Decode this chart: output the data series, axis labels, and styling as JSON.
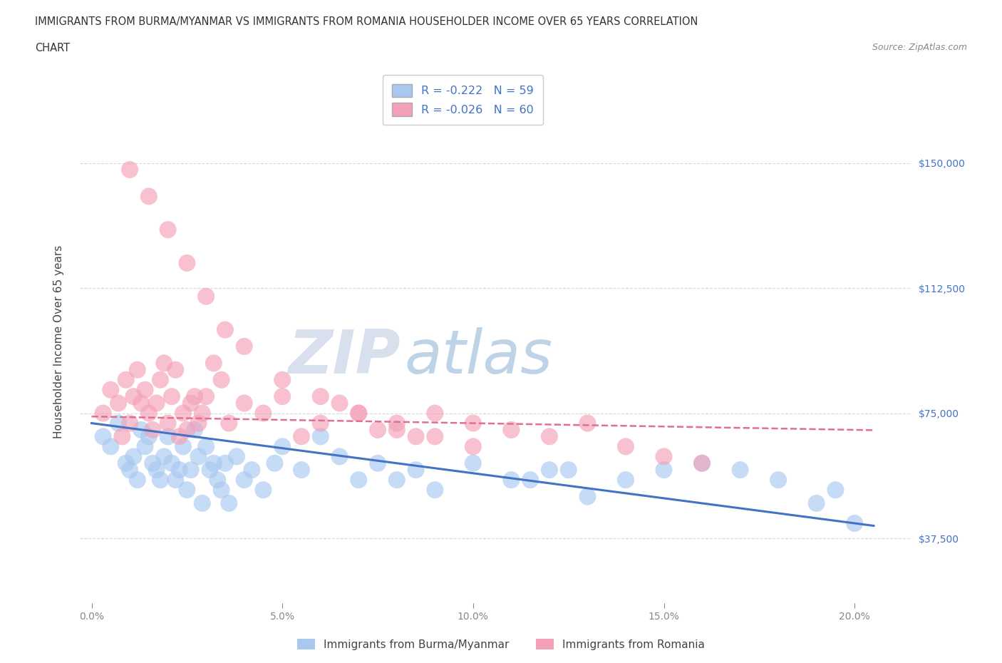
{
  "title_line1": "IMMIGRANTS FROM BURMA/MYANMAR VS IMMIGRANTS FROM ROMANIA HOUSEHOLDER INCOME OVER 65 YEARS CORRELATION",
  "title_line2": "CHART",
  "source_text": "Source: ZipAtlas.com",
  "ylabel": "Householder Income Over 65 years",
  "xlabel_ticks": [
    "0.0%",
    "5.0%",
    "10.0%",
    "15.0%",
    "20.0%"
  ],
  "xlabel_vals": [
    0.0,
    5.0,
    10.0,
    15.0,
    20.0
  ],
  "ytick_labels": [
    "$37,500",
    "$75,000",
    "$112,500",
    "$150,000"
  ],
  "ytick_vals": [
    37500,
    75000,
    112500,
    150000
  ],
  "ymin": 18000,
  "ymax": 175000,
  "xmin": -0.3,
  "xmax": 21.5,
  "r_burma": -0.222,
  "n_burma": 59,
  "r_romania": -0.026,
  "n_romania": 60,
  "color_burma": "#a8c8f0",
  "color_romania": "#f4a0b8",
  "line_color_burma": "#4472c4",
  "line_color_romania": "#e07090",
  "legend_label_burma": "Immigrants from Burma/Myanmar",
  "legend_label_romania": "Immigrants from Romania",
  "title_fontsize": 11,
  "axis_label_fontsize": 11,
  "tick_fontsize": 10,
  "watermark_color": "#d0dff5",
  "grid_color": "#d8d8d8",
  "background_color": "#ffffff",
  "burma_x": [
    0.3,
    0.5,
    0.7,
    0.9,
    1.0,
    1.1,
    1.2,
    1.3,
    1.4,
    1.5,
    1.6,
    1.7,
    1.8,
    1.9,
    2.0,
    2.1,
    2.2,
    2.3,
    2.4,
    2.5,
    2.6,
    2.7,
    2.8,
    2.9,
    3.0,
    3.1,
    3.2,
    3.3,
    3.4,
    3.5,
    3.6,
    3.8,
    4.0,
    4.2,
    4.5,
    4.8,
    5.0,
    5.5,
    6.0,
    6.5,
    7.0,
    7.5,
    8.0,
    8.5,
    9.0,
    10.0,
    11.0,
    12.0,
    13.0,
    14.0,
    15.0,
    16.0,
    17.0,
    18.0,
    19.0,
    19.5,
    20.0,
    11.5,
    12.5
  ],
  "burma_y": [
    68000,
    65000,
    72000,
    60000,
    58000,
    62000,
    55000,
    70000,
    65000,
    68000,
    60000,
    58000,
    55000,
    62000,
    68000,
    60000,
    55000,
    58000,
    65000,
    52000,
    58000,
    70000,
    62000,
    48000,
    65000,
    58000,
    60000,
    55000,
    52000,
    60000,
    48000,
    62000,
    55000,
    58000,
    52000,
    60000,
    65000,
    58000,
    68000,
    62000,
    55000,
    60000,
    55000,
    58000,
    52000,
    60000,
    55000,
    58000,
    50000,
    55000,
    58000,
    60000,
    58000,
    55000,
    48000,
    52000,
    42000,
    55000,
    58000
  ],
  "romania_x": [
    0.3,
    0.5,
    0.7,
    0.8,
    0.9,
    1.0,
    1.1,
    1.2,
    1.3,
    1.4,
    1.5,
    1.6,
    1.7,
    1.8,
    1.9,
    2.0,
    2.1,
    2.2,
    2.3,
    2.4,
    2.5,
    2.6,
    2.7,
    2.8,
    2.9,
    3.0,
    3.2,
    3.4,
    3.6,
    4.0,
    4.5,
    5.0,
    5.5,
    6.0,
    6.5,
    7.0,
    7.5,
    8.0,
    8.5,
    9.0,
    10.0,
    11.0,
    12.0,
    13.0,
    14.0,
    15.0,
    1.0,
    1.5,
    2.0,
    2.5,
    3.0,
    3.5,
    4.0,
    5.0,
    6.0,
    7.0,
    8.0,
    9.0,
    10.0,
    16.0
  ],
  "romania_y": [
    75000,
    82000,
    78000,
    68000,
    85000,
    72000,
    80000,
    88000,
    78000,
    82000,
    75000,
    70000,
    78000,
    85000,
    90000,
    72000,
    80000,
    88000,
    68000,
    75000,
    70000,
    78000,
    80000,
    72000,
    75000,
    80000,
    90000,
    85000,
    72000,
    78000,
    75000,
    80000,
    68000,
    72000,
    78000,
    75000,
    70000,
    72000,
    68000,
    75000,
    72000,
    70000,
    68000,
    72000,
    65000,
    62000,
    148000,
    140000,
    130000,
    120000,
    110000,
    100000,
    95000,
    85000,
    80000,
    75000,
    70000,
    68000,
    65000,
    60000
  ]
}
